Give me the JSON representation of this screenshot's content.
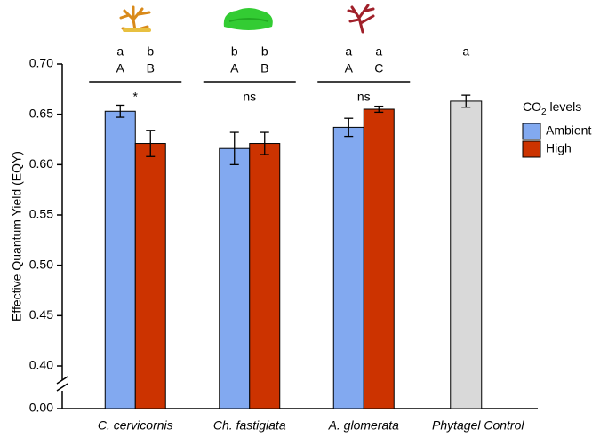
{
  "chart_data": {
    "type": "bar",
    "y_label": "Effective Quantum Yield (EQY)",
    "categories": [
      "C. cervicornis",
      "Ch. fastigiata",
      "A. glomerata",
      "Phytagel Control"
    ],
    "series": [
      {
        "name": "Ambient",
        "color": "#82a9f0",
        "values": [
          0.653,
          0.616,
          0.637,
          null
        ],
        "errors": [
          0.006,
          0.016,
          0.009,
          null
        ]
      },
      {
        "name": "High",
        "color": "#cc3300",
        "values": [
          0.621,
          0.621,
          0.655,
          null
        ],
        "errors": [
          0.013,
          0.011,
          0.003,
          null
        ]
      }
    ],
    "control": {
      "color": "#d9d9d9",
      "values": [
        null,
        null,
        null,
        0.663
      ],
      "errors": [
        null,
        null,
        null,
        0.006
      ]
    },
    "legend_title": [
      "CO",
      "2",
      " levels"
    ],
    "group_letters": [
      {
        "lower": [
          "a",
          "b"
        ],
        "upper": [
          "A",
          "B"
        ],
        "significance": "*"
      },
      {
        "lower": [
          "b",
          "b"
        ],
        "upper": [
          "A",
          "B"
        ],
        "significance": "ns"
      },
      {
        "lower": [
          "a",
          "a"
        ],
        "upper": [
          "A",
          "C"
        ],
        "significance": "ns"
      },
      {
        "lower": [
          "a"
        ]
      }
    ],
    "ylim": [
      0,
      0.7
    ],
    "y_break": [
      0,
      0.4
    ],
    "yticks": [
      {
        "value": 0,
        "label": "0.00"
      },
      {
        "value": 0.4,
        "label": "0.40"
      },
      {
        "value": 0.45,
        "label": "0.45"
      },
      {
        "value": 0.5,
        "label": "0.50"
      },
      {
        "value": 0.55,
        "label": "0.55"
      },
      {
        "value": 0.6,
        "label": "0.60"
      },
      {
        "value": 0.65,
        "label": "0.65"
      },
      {
        "value": 0.7,
        "label": "0.70"
      }
    ]
  }
}
